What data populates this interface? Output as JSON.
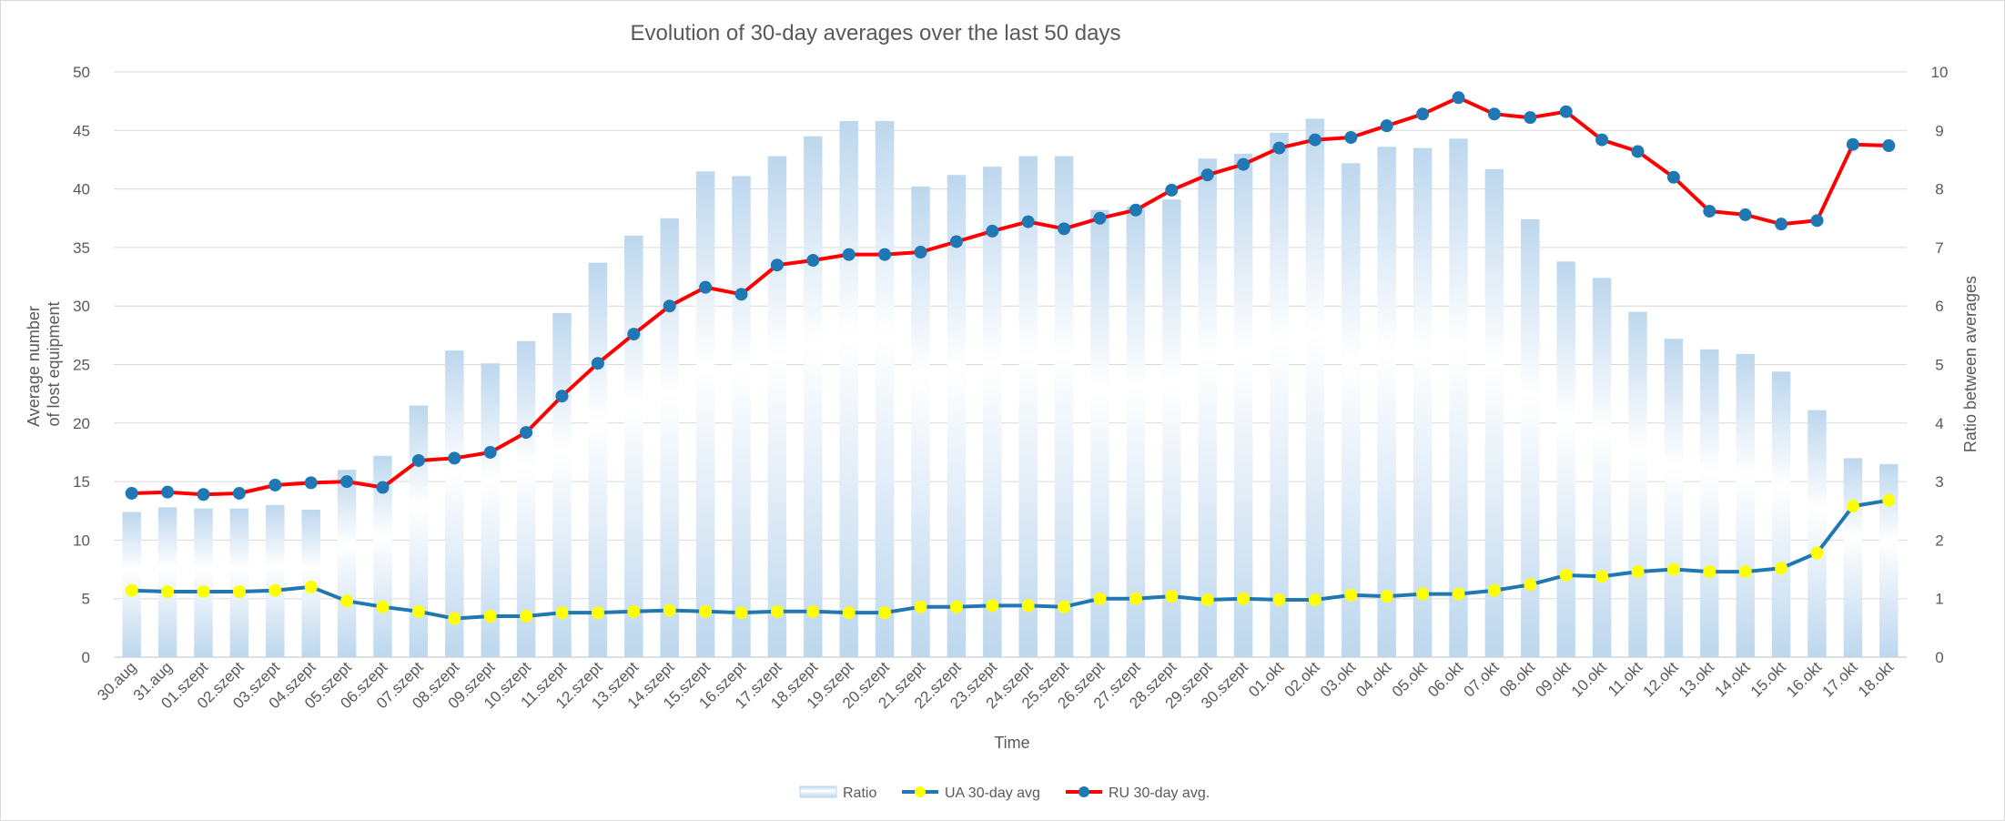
{
  "chart_data": {
    "type": "bar",
    "title": "Evolution of 30-day averages over the last 50 days",
    "xlabel": "Time",
    "ylabel_left": "Average number of lost equipment",
    "ylabel_left_lines": [
      "Average number",
      "of lost equipment"
    ],
    "ylabel_right": "Ratio between averages",
    "ylim_left": [
      0,
      50
    ],
    "ylim_right": [
      0,
      10
    ],
    "yticks_left": [
      "0",
      "5",
      "10",
      "15",
      "20",
      "25",
      "30",
      "35",
      "40",
      "45",
      "50"
    ],
    "yticks_right": [
      "0",
      "1",
      "2",
      "3",
      "4",
      "5",
      "6",
      "7",
      "8",
      "9",
      "10"
    ],
    "grid": true,
    "legend_position": "bottom",
    "categories": [
      "30.aug",
      "31.aug",
      "01.szept",
      "02.szept",
      "03.szept",
      "04.szept",
      "05.szept",
      "06.szept",
      "07.szept",
      "08.szept",
      "09.szept",
      "10.szept",
      "11.szept",
      "12.szept",
      "13.szept",
      "14.szept",
      "15.szept",
      "16.szept",
      "17.szept",
      "18.szept",
      "19.szept",
      "20.szept",
      "21.szept",
      "22.szept",
      "23.szept",
      "24.szept",
      "25.szept",
      "26.szept",
      "27.szept",
      "28.szept",
      "29.szept",
      "30.szept",
      "01.okt",
      "02.okt",
      "03.okt",
      "04.okt",
      "05.okt",
      "06.okt",
      "07.okt",
      "08.okt",
      "09.okt",
      "10.okt",
      "11.okt",
      "12.okt",
      "13.okt",
      "14.okt",
      "15.okt",
      "16.okt",
      "17.okt",
      "18.okt"
    ],
    "series": [
      {
        "name": "Ratio",
        "type": "bar",
        "axis": "right",
        "color": "#bdd7ee",
        "values": [
          2.48,
          2.56,
          2.54,
          2.54,
          2.6,
          2.52,
          3.2,
          3.44,
          4.3,
          5.24,
          5.02,
          5.4,
          5.88,
          6.74,
          7.2,
          7.5,
          8.3,
          8.22,
          8.56,
          8.9,
          9.16,
          9.16,
          8.04,
          8.24,
          8.38,
          8.56,
          8.56,
          7.64,
          7.7,
          7.82,
          8.52,
          8.6,
          8.96,
          9.2,
          8.44,
          8.72,
          8.7,
          8.86,
          8.34,
          7.48,
          6.76,
          6.48,
          5.9,
          5.44,
          5.26,
          5.18,
          4.88,
          4.22,
          3.4,
          3.3
        ]
      },
      {
        "name": "UA 30-day avg",
        "type": "line",
        "axis": "left",
        "color": "#1f77b4",
        "marker_color": "#ffff00",
        "values": [
          5.7,
          5.6,
          5.6,
          5.6,
          5.7,
          6.0,
          4.8,
          4.3,
          3.9,
          3.3,
          3.5,
          3.5,
          3.8,
          3.8,
          3.9,
          4.0,
          3.9,
          3.8,
          3.9,
          3.9,
          3.8,
          3.8,
          4.3,
          4.3,
          4.4,
          4.4,
          4.3,
          5.0,
          5.0,
          5.2,
          4.9,
          5.0,
          4.9,
          4.9,
          5.3,
          5.2,
          5.4,
          5.4,
          5.7,
          6.2,
          7.0,
          6.9,
          7.3,
          7.5,
          7.3,
          7.3,
          7.6,
          8.9,
          12.9,
          13.4
        ]
      },
      {
        "name": "RU 30-day avg.",
        "type": "line",
        "axis": "left",
        "color": "#ff0000",
        "marker_color": "#1f77b4",
        "values": [
          14.0,
          14.1,
          13.9,
          14.0,
          14.7,
          14.9,
          15.0,
          14.5,
          16.8,
          17.0,
          17.5,
          19.2,
          22.3,
          25.1,
          27.6,
          30.0,
          31.6,
          31.0,
          33.5,
          33.9,
          34.4,
          34.4,
          34.6,
          35.5,
          36.4,
          37.2,
          36.6,
          37.5,
          38.2,
          39.9,
          41.2,
          42.1,
          43.5,
          44.2,
          44.4,
          45.4,
          46.4,
          47.8,
          46.4,
          46.1,
          46.6,
          44.2,
          43.2,
          41.0,
          38.1,
          37.8,
          37.0,
          37.3,
          43.8,
          43.7
        ]
      }
    ]
  }
}
